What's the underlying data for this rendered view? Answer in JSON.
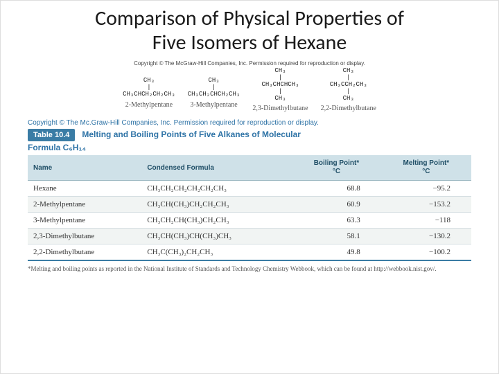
{
  "title_line1": "Comparison of Physical Properties of",
  "title_line2": "Five Isomers of Hexane",
  "copyright_structures": "Copyright © The McGraw-Hill Companies, Inc. Permission required for reproduction or display.",
  "structures": [
    {
      "lines": "CH₃\n|\nCH₃CHCH₂CH₂CH₃",
      "name": "2-Methylpentane"
    },
    {
      "lines": "CH₃\n|\nCH₃CH₂CHCH₂CH₃",
      "name": "3-Methylpentane"
    },
    {
      "lines": "CH₃\n|\nCH₃CHCHCH₃\n|\nCH₃",
      "name": "2,3-Dimethylbutane"
    },
    {
      "lines": "CH₃\n|\nCH₃CCH₂CH₃\n|\nCH₃",
      "name": "2,2-Dimethylbutane"
    }
  ],
  "copyright_table": "Copyright © The Mc.Graw-Hill Companies, Inc. Permission required for reproduction or display.",
  "table_tag": "Table 10.4",
  "table_title": "Melting and Boiling Points of Five Alkanes of Molecular",
  "table_subtitle": "Formula C₆H₁₄",
  "columns": {
    "name": "Name",
    "formula": "Condensed Formula",
    "bp": "Boiling Point*\n°C",
    "mp": "Melting Point*\n°C"
  },
  "rows": [
    {
      "name": "Hexane",
      "formula": "CH₃CH₂CH₂CH₂CH₂CH₃",
      "bp": "68.8",
      "mp": "−95.2"
    },
    {
      "name": "2-Methylpentane",
      "formula": "CH₃CH(CH₃)CH₂CH₂CH₃",
      "bp": "60.9",
      "mp": "−153.2"
    },
    {
      "name": "3-Methylpentane",
      "formula": "CH₃CH₂CH(CH₃)CH₂CH₃",
      "bp": "63.3",
      "mp": "−118"
    },
    {
      "name": "2,3-Dimethylbutane",
      "formula": "CH₃CH(CH₃)CH(CH₃)CH₃",
      "bp": "58.1",
      "mp": "−130.2"
    },
    {
      "name": "2,2-Dimethylbutane",
      "formula": "CH₃C(CH₃)₂CH₂CH₃",
      "bp": "49.8",
      "mp": "−100.2"
    }
  ],
  "footnote": "*Melting and boiling points as reported in the National Institute of Standards and Technology Chemistry Webbook, which can be found at http://webbook.nist.gov/.",
  "colors": {
    "header_bg": "#cfe1e8",
    "accent": "#3a7ca5",
    "title_text": "#1a1a1a",
    "link_text": "#2e73a6"
  }
}
